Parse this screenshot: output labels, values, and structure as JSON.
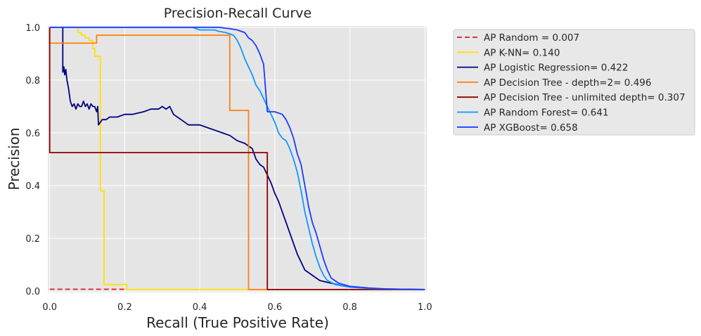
{
  "chart_data": {
    "type": "line",
    "title": "Precision-Recall Curve",
    "xlabel": "Recall (True Positive Rate)",
    "ylabel": "Precision",
    "xlim": [
      -0.005,
      1.005
    ],
    "ylim": [
      -0.005,
      1.005
    ],
    "xticks": [
      0.0,
      0.2,
      0.4,
      0.6,
      0.8,
      1.0
    ],
    "yticks": [
      0.0,
      0.2,
      0.4,
      0.6,
      0.8,
      1.0
    ],
    "xtick_labels": [
      "0.0",
      "0.2",
      "0.4",
      "0.6",
      "0.8",
      "1.0"
    ],
    "ytick_labels": [
      "0.0",
      "0.2",
      "0.4",
      "0.6",
      "0.8",
      "1.0"
    ],
    "grid": true,
    "background": "#e5e5e5",
    "legend_position": "outside-right-top",
    "series": [
      {
        "name": "AP Random = 0.007",
        "color": "#e31a1c",
        "dash": true,
        "x": [
          0.0,
          0.2
        ],
        "y": [
          0.007,
          0.007
        ]
      },
      {
        "name": "AP K-NN= 0.140",
        "color": "#ffe000",
        "x": [
          0.075,
          0.075,
          0.085,
          0.085,
          0.095,
          0.095,
          0.105,
          0.105,
          0.115,
          0.115,
          0.12,
          0.12,
          0.135,
          0.135,
          0.145,
          0.145,
          0.205,
          0.205,
          1.0
        ],
        "y": [
          1.0,
          0.98,
          0.98,
          0.97,
          0.97,
          0.96,
          0.96,
          0.95,
          0.95,
          0.92,
          0.92,
          0.89,
          0.89,
          0.38,
          0.38,
          0.025,
          0.025,
          0.006,
          0.006
        ]
      },
      {
        "name": "AP Logistic Regression= 0.422",
        "color": "#000080",
        "x": [
          0.035,
          0.035,
          0.038,
          0.04,
          0.043,
          0.046,
          0.05,
          0.055,
          0.06,
          0.065,
          0.07,
          0.075,
          0.08,
          0.085,
          0.09,
          0.095,
          0.1,
          0.105,
          0.11,
          0.115,
          0.12,
          0.125,
          0.128,
          0.13,
          0.14,
          0.15,
          0.16,
          0.18,
          0.2,
          0.22,
          0.25,
          0.27,
          0.29,
          0.3,
          0.31,
          0.32,
          0.33,
          0.35,
          0.37,
          0.4,
          0.42,
          0.44,
          0.46,
          0.48,
          0.5,
          0.52,
          0.53,
          0.54,
          0.55,
          0.56,
          0.57,
          0.58,
          0.59,
          0.6,
          0.61,
          0.62,
          0.63,
          0.64,
          0.65,
          0.66,
          0.67,
          0.68,
          0.7,
          0.72,
          0.75,
          0.78,
          0.82,
          0.86,
          0.9,
          0.95,
          1.0
        ],
        "y": [
          1.0,
          0.83,
          0.85,
          0.82,
          0.84,
          0.8,
          0.77,
          0.72,
          0.7,
          0.71,
          0.69,
          0.71,
          0.7,
          0.7,
          0.72,
          0.7,
          0.71,
          0.69,
          0.71,
          0.7,
          0.7,
          0.68,
          0.7,
          0.63,
          0.65,
          0.65,
          0.66,
          0.66,
          0.67,
          0.67,
          0.68,
          0.69,
          0.69,
          0.7,
          0.69,
          0.7,
          0.67,
          0.65,
          0.63,
          0.63,
          0.62,
          0.61,
          0.6,
          0.59,
          0.57,
          0.56,
          0.55,
          0.54,
          0.5,
          0.48,
          0.47,
          0.44,
          0.41,
          0.37,
          0.34,
          0.3,
          0.26,
          0.22,
          0.18,
          0.14,
          0.11,
          0.08,
          0.06,
          0.04,
          0.03,
          0.02,
          0.015,
          0.01,
          0.008,
          0.007,
          0.006
        ]
      },
      {
        "name": "AP Decision Tree - depth=2= 0.496",
        "color": "#ff7f0e",
        "x": [
          0.0,
          0.0,
          0.125,
          0.125,
          0.48,
          0.48,
          0.53,
          0.53,
          1.0
        ],
        "y": [
          1.0,
          0.94,
          0.94,
          0.97,
          0.97,
          0.685,
          0.685,
          0.006,
          0.006
        ]
      },
      {
        "name": "AP Decision Tree - unlimited depth= 0.307",
        "color": "#8b0000",
        "x": [
          0.0,
          0.0,
          0.58,
          0.58,
          1.0
        ],
        "y": [
          1.0,
          0.525,
          0.525,
          0.006,
          0.006
        ]
      },
      {
        "name": "AP Random Forest= 0.641",
        "color": "#0d98ff",
        "x": [
          0.0,
          0.38,
          0.4,
          0.42,
          0.44,
          0.45,
          0.47,
          0.49,
          0.5,
          0.51,
          0.52,
          0.53,
          0.54,
          0.55,
          0.56,
          0.57,
          0.58,
          0.59,
          0.6,
          0.61,
          0.62,
          0.63,
          0.64,
          0.65,
          0.66,
          0.67,
          0.68,
          0.69,
          0.7,
          0.71,
          0.72,
          0.73,
          0.74,
          0.76,
          0.78,
          0.8,
          0.85,
          0.9,
          0.95,
          1.0
        ],
        "y": [
          1.0,
          1.0,
          0.99,
          0.99,
          0.99,
          0.985,
          0.98,
          0.97,
          0.95,
          0.92,
          0.88,
          0.85,
          0.82,
          0.78,
          0.76,
          0.73,
          0.7,
          0.67,
          0.64,
          0.6,
          0.58,
          0.57,
          0.54,
          0.5,
          0.45,
          0.38,
          0.3,
          0.24,
          0.18,
          0.13,
          0.09,
          0.06,
          0.04,
          0.025,
          0.02,
          0.015,
          0.01,
          0.008,
          0.007,
          0.006
        ]
      },
      {
        "name": "AP XGBoost= 0.658",
        "color": "#1a3cff",
        "x": [
          0.0,
          0.45,
          0.48,
          0.5,
          0.52,
          0.53,
          0.54,
          0.55,
          0.56,
          0.57,
          0.58,
          0.6,
          0.62,
          0.63,
          0.64,
          0.65,
          0.66,
          0.67,
          0.68,
          0.69,
          0.7,
          0.71,
          0.72,
          0.73,
          0.74,
          0.75,
          0.77,
          0.8,
          0.85,
          0.9,
          0.95,
          1.0
        ],
        "y": [
          1.0,
          1.0,
          0.995,
          0.99,
          0.98,
          0.96,
          0.95,
          0.93,
          0.9,
          0.86,
          0.68,
          0.68,
          0.67,
          0.65,
          0.62,
          0.58,
          0.52,
          0.48,
          0.4,
          0.32,
          0.26,
          0.22,
          0.17,
          0.12,
          0.08,
          0.05,
          0.03,
          0.018,
          0.012,
          0.008,
          0.007,
          0.006
        ]
      }
    ]
  }
}
